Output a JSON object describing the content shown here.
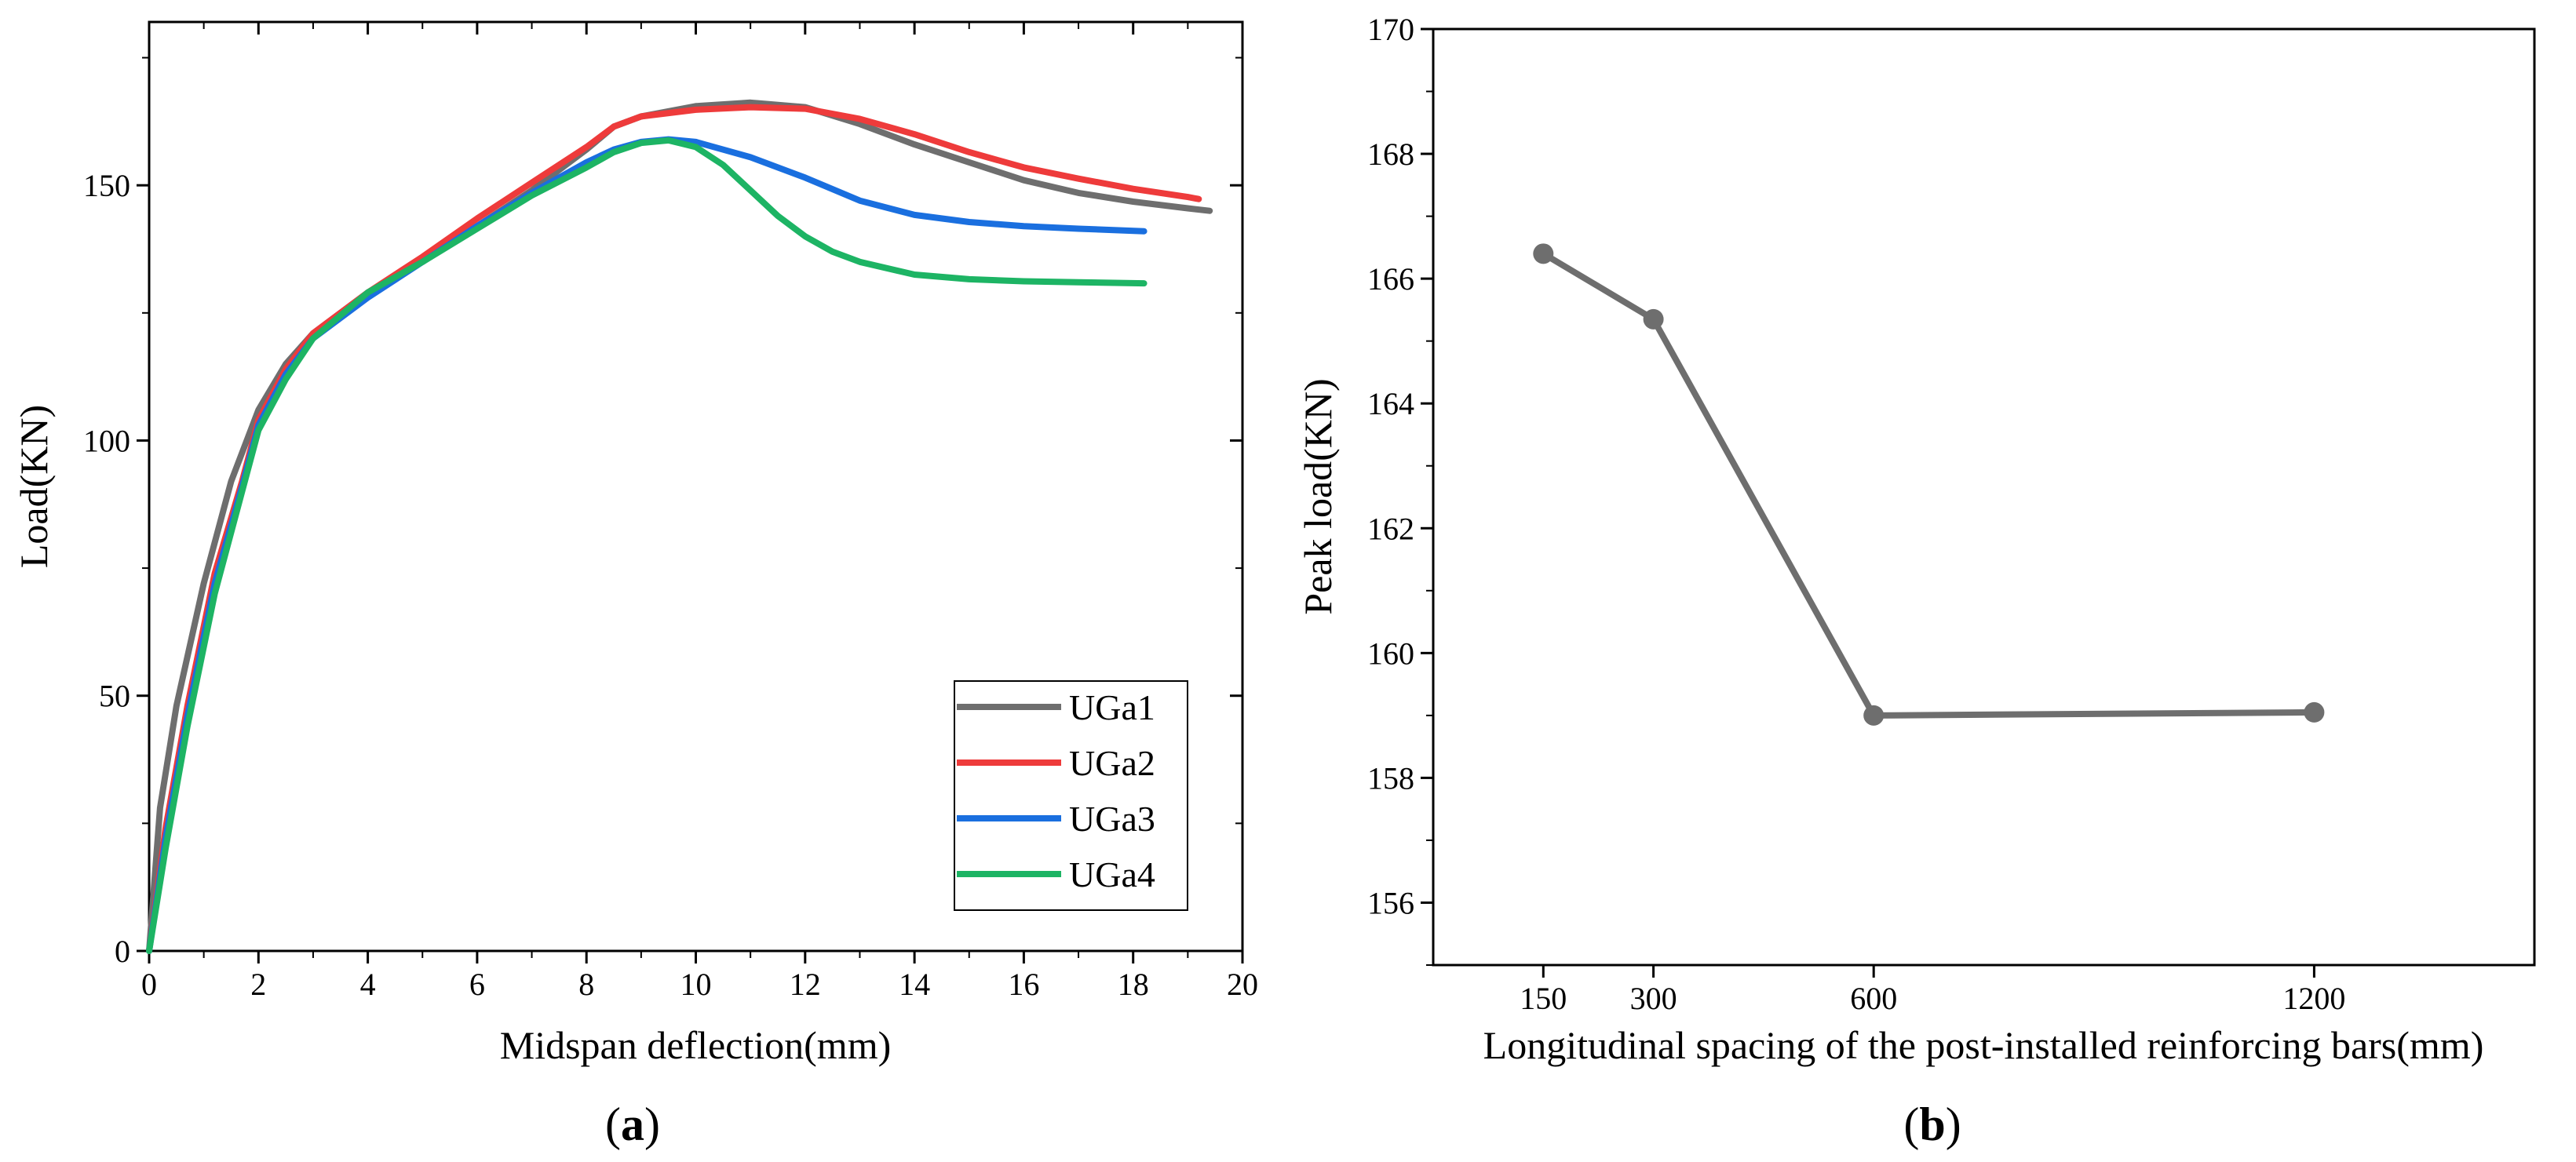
{
  "chart_data": [
    {
      "type": "line",
      "panel_label": "a",
      "xlabel": "Midspan deflection(mm)",
      "ylabel": "Load(KN)",
      "xlim": [
        0,
        20
      ],
      "ylim": [
        0,
        182
      ],
      "xticks": [
        "0",
        "2",
        "4",
        "6",
        "8",
        "10",
        "12",
        "14",
        "16",
        "18",
        "20"
      ],
      "yticks": [
        "0",
        "50",
        "100",
        "150"
      ],
      "grid": false,
      "legend_position": "bottom-right",
      "series": [
        {
          "name": "UGa1",
          "color": "#6e6e6e",
          "points": [
            [
              0,
              0
            ],
            [
              0.2,
              28
            ],
            [
              0.5,
              48
            ],
            [
              1,
              72
            ],
            [
              1.5,
              92
            ],
            [
              2,
              106
            ],
            [
              2.5,
              115
            ],
            [
              3,
              121
            ],
            [
              4,
              129
            ],
            [
              5,
              135
            ],
            [
              6,
              142
            ],
            [
              7,
              149
            ],
            [
              8,
              157
            ],
            [
              8.5,
              161.5
            ],
            [
              9,
              163.5
            ],
            [
              10,
              165.5
            ],
            [
              11,
              166.2
            ],
            [
              12,
              165.3
            ],
            [
              13,
              162
            ],
            [
              14,
              158
            ],
            [
              15,
              154.5
            ],
            [
              16,
              151
            ],
            [
              17,
              148.5
            ],
            [
              18,
              146.8
            ],
            [
              19,
              145.5
            ],
            [
              19.4,
              145
            ]
          ]
        },
        {
          "name": "UGa2",
          "color": "#ee3b3b",
          "points": [
            [
              0,
              0
            ],
            [
              0.3,
              24
            ],
            [
              0.7,
              48
            ],
            [
              1.2,
              74
            ],
            [
              1.7,
              92
            ],
            [
              2,
              104
            ],
            [
              2.5,
              114
            ],
            [
              3,
              121
            ],
            [
              4,
              129
            ],
            [
              5,
              136
            ],
            [
              6,
              143.5
            ],
            [
              7,
              150.5
            ],
            [
              8,
              157.5
            ],
            [
              8.5,
              161.5
            ],
            [
              9,
              163.5
            ],
            [
              10,
              164.8
            ],
            [
              11,
              165.3
            ],
            [
              12,
              165
            ],
            [
              13,
              163
            ],
            [
              14,
              160
            ],
            [
              15,
              156.5
            ],
            [
              16,
              153.5
            ],
            [
              17,
              151.3
            ],
            [
              18,
              149.3
            ],
            [
              19,
              147.7
            ],
            [
              19.2,
              147.3
            ]
          ]
        },
        {
          "name": "UGa3",
          "color": "#1a6fdf",
          "points": [
            [
              0,
              0
            ],
            [
              0.3,
              22
            ],
            [
              0.7,
              46
            ],
            [
              1.2,
              72
            ],
            [
              1.7,
              91
            ],
            [
              2,
              103
            ],
            [
              2.5,
              113
            ],
            [
              3,
              120
            ],
            [
              4,
              128
            ],
            [
              5,
              135
            ],
            [
              6,
              142
            ],
            [
              7,
              148.5
            ],
            [
              8,
              154.5
            ],
            [
              8.5,
              157
            ],
            [
              9,
              158.5
            ],
            [
              9.5,
              159
            ],
            [
              10,
              158.5
            ],
            [
              11,
              155.5
            ],
            [
              12,
              151.5
            ],
            [
              13,
              147
            ],
            [
              14,
              144.2
            ],
            [
              15,
              142.8
            ],
            [
              16,
              142
            ],
            [
              17,
              141.5
            ],
            [
              18.2,
              141
            ]
          ]
        },
        {
          "name": "UGa4",
          "color": "#1db464",
          "points": [
            [
              0,
              0
            ],
            [
              0.3,
              20
            ],
            [
              0.7,
              44
            ],
            [
              1.2,
              70
            ],
            [
              1.7,
              90
            ],
            [
              2,
              102
            ],
            [
              2.5,
              112
            ],
            [
              3,
              120
            ],
            [
              4,
              129
            ],
            [
              5,
              135
            ],
            [
              6,
              141.5
            ],
            [
              7,
              148
            ],
            [
              8,
              153.5
            ],
            [
              8.5,
              156.5
            ],
            [
              9,
              158.3
            ],
            [
              9.5,
              158.8
            ],
            [
              10,
              157.5
            ],
            [
              10.5,
              154
            ],
            [
              11,
              149
            ],
            [
              11.5,
              144
            ],
            [
              12,
              140
            ],
            [
              12.5,
              137
            ],
            [
              13,
              135
            ],
            [
              14,
              132.5
            ],
            [
              15,
              131.6
            ],
            [
              16,
              131.2
            ],
            [
              17,
              131
            ],
            [
              18.2,
              130.8
            ]
          ]
        }
      ]
    },
    {
      "type": "line",
      "panel_label": "b",
      "xlabel": "Longitudinal spacing of the post-installed reinforcing bars(mm)",
      "ylabel": "Peak load(KN)",
      "x_categories": [
        "150",
        "300",
        "600",
        "1200"
      ],
      "x": [
        150,
        300,
        600,
        1200
      ],
      "xlim": [
        0,
        1500
      ],
      "ylim": [
        155,
        170
      ],
      "yticks": [
        "156",
        "158",
        "160",
        "162",
        "164",
        "166",
        "168",
        "170"
      ],
      "grid": false,
      "series": [
        {
          "color": "#6e6e6e",
          "values": [
            166.4,
            165.35,
            159,
            159.05
          ]
        }
      ]
    }
  ]
}
